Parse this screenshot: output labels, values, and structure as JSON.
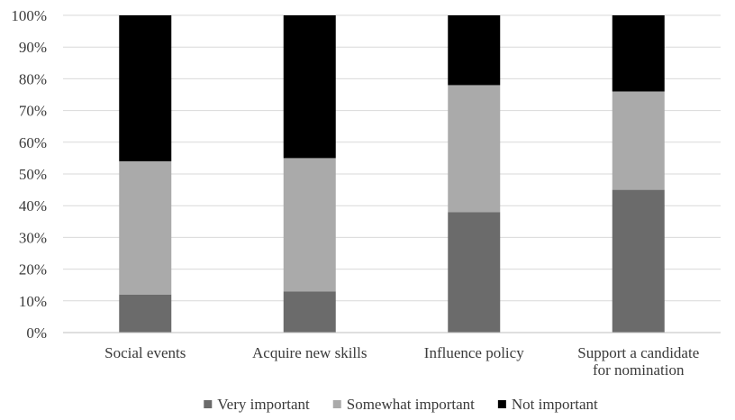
{
  "chart_data": {
    "type": "bar",
    "stacked": true,
    "percent": true,
    "categories": [
      [
        "Social events"
      ],
      [
        "Acquire new skills"
      ],
      [
        "Influence policy"
      ],
      [
        "Support a candidate",
        "for nomination"
      ]
    ],
    "series": [
      {
        "name": "Very important",
        "color": "#6b6b6b",
        "values": [
          12,
          13,
          38,
          45
        ]
      },
      {
        "name": "Somewhat important",
        "color": "#aaaaaa",
        "values": [
          42,
          42,
          40,
          31
        ]
      },
      {
        "name": "Not important",
        "color": "#000000",
        "values": [
          46,
          45,
          22,
          24
        ]
      }
    ],
    "ylim": [
      0,
      100
    ],
    "yticks": [
      "0%",
      "10%",
      "20%",
      "30%",
      "40%",
      "50%",
      "60%",
      "70%",
      "80%",
      "90%",
      "100%"
    ],
    "grid": true,
    "legend_position": "bottom"
  }
}
